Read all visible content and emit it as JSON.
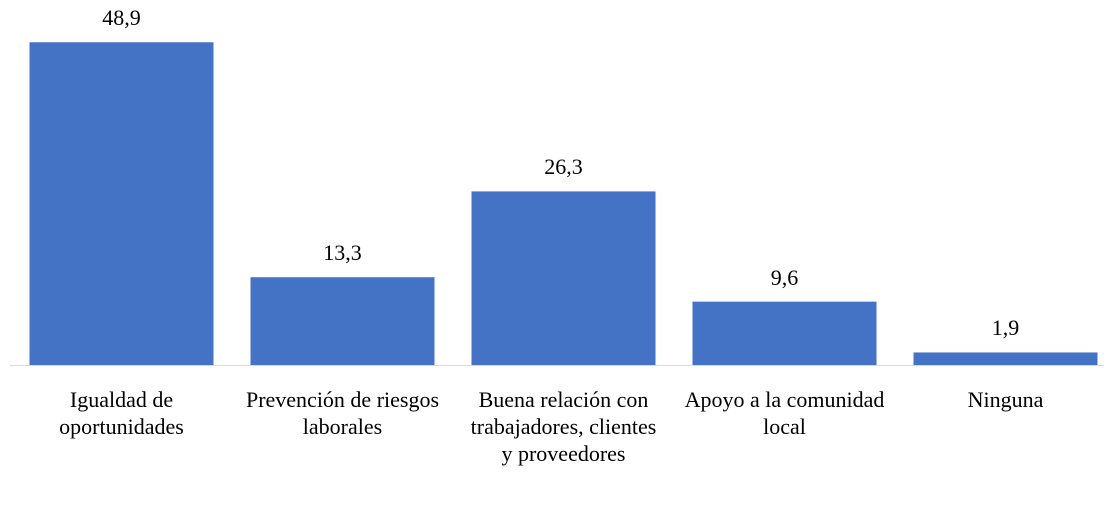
{
  "chart_data": {
    "type": "bar",
    "categories": [
      "Igualdad de oportunidades",
      "Prevención de riesgos laborales",
      "Buena relación con trabajadores, clientes y proveedores",
      "Apoyo a la comunidad local",
      "Ninguna"
    ],
    "values": [
      48.9,
      13.3,
      26.3,
      9.6,
      1.9
    ],
    "value_labels": [
      "48,9",
      "13,3",
      "26,3",
      "9,6",
      "1,9"
    ],
    "color": "#4472c4"
  }
}
